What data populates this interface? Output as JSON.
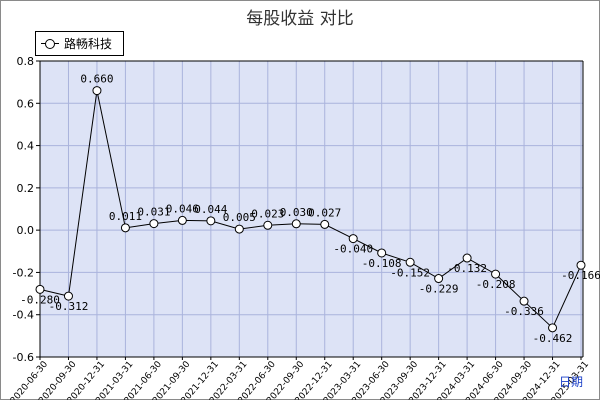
{
  "title": "每股收益 对比",
  "chart_data": {
    "type": "line",
    "title": "每股收益 对比",
    "xlabel": "日期",
    "ylabel": "",
    "ylim": [
      -0.6,
      0.8
    ],
    "yticks": [
      0.8,
      0.6,
      0.4,
      0.2,
      0.0,
      -0.2,
      -0.4,
      -0.6
    ],
    "ytick_labels": [
      "0.8",
      "0.6",
      "0.4",
      "0.2",
      "0.0",
      "-0.2",
      "-0.4",
      "-0.6"
    ],
    "grid": true,
    "legend_position": "top-left",
    "categories": [
      "2020-06-30",
      "2020-09-30",
      "2020-12-31",
      "2021-03-31",
      "2021-06-30",
      "2021-09-30",
      "2021-12-31",
      "2022-03-31",
      "2022-06-30",
      "2022-09-30",
      "2022-12-31",
      "2023-03-31",
      "2023-06-30",
      "2023-09-30",
      "2023-12-31",
      "2024-03-31",
      "2024-06-30",
      "2024-09-30",
      "2024-12-31",
      "2025-03-31"
    ],
    "series": [
      {
        "name": "路畅科技",
        "values": [
          -0.28,
          -0.312,
          0.66,
          0.011,
          0.031,
          0.046,
          0.044,
          0.005,
          0.023,
          0.03,
          0.027,
          -0.04,
          -0.108,
          -0.152,
          -0.229,
          -0.132,
          -0.208,
          -0.336,
          -0.462,
          -0.166
        ],
        "labels": [
          "-0.280",
          "-0.312",
          "0.660",
          "0.011",
          "0.031",
          "0.046",
          "0.044",
          "0.005",
          "0.023",
          "0.030",
          "0.027",
          "-0.040",
          "-0.108",
          "-0.152",
          "-0.229",
          "-0.132",
          "-0.208",
          "-0.336",
          "-0.462",
          "-0.166"
        ]
      }
    ],
    "colors": {
      "plot_background": "#dde3f6",
      "grid": "#aab3dc",
      "line": "#000000",
      "axis_unit": "#1a3fc8"
    }
  }
}
